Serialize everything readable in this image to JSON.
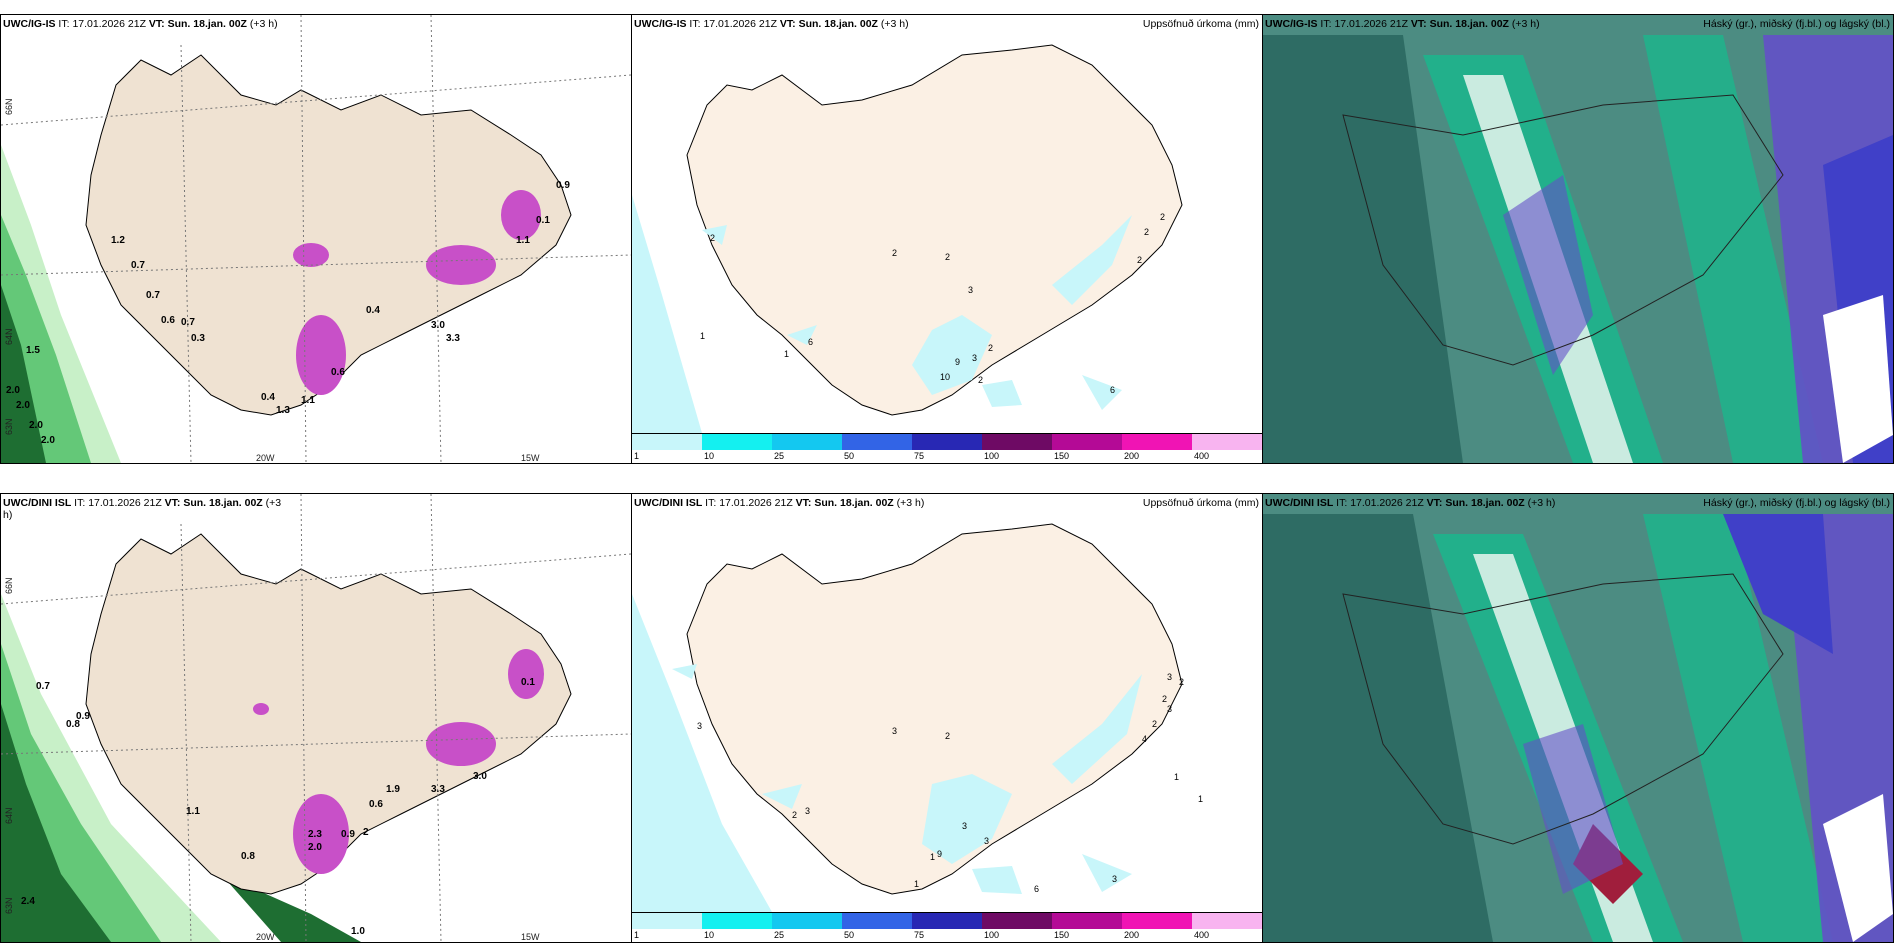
{
  "panels": [
    {
      "model": "UWC/IG-IS",
      "it_label": "IT:",
      "it_value": "17.01.2026 21Z",
      "vt_label": "VT:",
      "vt_value": "Sun. 18.jan. 00Z",
      "step": "(+3 h)",
      "right_title": "",
      "lon_labels": [
        "20W",
        "15W"
      ],
      "lat_labels": [
        "66N",
        "64N",
        "63N"
      ],
      "value_labels": [
        "0.9",
        "0.7",
        "0.7",
        "0.6",
        "0.7",
        "0.3",
        "1.5",
        "2.0",
        "2.0",
        "2.0",
        "2.0",
        "0.6",
        "0.4",
        "0.4",
        "1.3",
        "1.1",
        "1.1",
        "3.0",
        "3.3",
        "1.2",
        "0.1"
      ]
    },
    {
      "model": "UWC/IG-IS",
      "it_label": "IT:",
      "it_value": "17.01.2026 21Z",
      "vt_label": "VT:",
      "vt_value": "Sun. 18.jan. 00Z",
      "step": "(+3 h)",
      "right_title": "Uppsöfnuð úrkoma (mm)",
      "contour_labels": [
        "2",
        "2",
        "2",
        "2",
        "2",
        "2",
        "2",
        "1",
        "1",
        "6",
        "9",
        "3",
        "2",
        "10",
        "6",
        "3"
      ],
      "colorbar": {
        "ticks": [
          "1",
          "10",
          "25",
          "50",
          "75",
          "100",
          "150",
          "200",
          "400"
        ],
        "colors": [
          "#c8f6fa",
          "#14f0f0",
          "#14c8f0",
          "#3264e6",
          "#2828b4",
          "#6e0a64",
          "#b40a96",
          "#f014b4",
          "#f8b4f0"
        ]
      }
    },
    {
      "model": "UWC/IG-IS",
      "it_label": "IT:",
      "it_value": "17.01.2026 21Z",
      "vt_label": "VT:",
      "vt_value": "Sun. 18.jan. 00Z",
      "step": "(+3 h)",
      "right_title": "Háský (gr.), miðský (fj.bl.) og lágský (bl.)"
    },
    {
      "model": "UWC/DINI ISL",
      "it_label": "IT:",
      "it_value": "17.01.2026 21Z",
      "vt_label": "VT:",
      "vt_value": "Sun. 18.jan. 00Z",
      "step": "(+3",
      "step2": "h)",
      "right_title": "",
      "lon_labels": [
        "20W",
        "15W"
      ],
      "lat_labels": [
        "66N",
        "64N",
        "63N"
      ],
      "value_labels": [
        "0.7",
        "0.9",
        "0.8",
        "1.1",
        "0.8",
        "2.4",
        "1.0",
        "2.3",
        "2.0",
        "0.9",
        "2",
        "1.9",
        "3.3",
        "3.0",
        "0.6",
        "0.1"
      ]
    },
    {
      "model": "UWC/DINI ISL",
      "it_label": "IT:",
      "it_value": "17.01.2026 21Z",
      "vt_label": "VT:",
      "vt_value": "Sun. 18.jan. 00Z",
      "step": "(+3 h)",
      "right_title": "Uppsöfnuð úrkoma (mm)",
      "contour_labels": [
        "3",
        "3",
        "2",
        "2",
        "2",
        "2",
        "3",
        "3",
        "4",
        "3",
        "2",
        "3",
        "1",
        "1",
        "1",
        "9",
        "6",
        "3",
        "3",
        "1"
      ],
      "colorbar": {
        "ticks": [
          "1",
          "10",
          "25",
          "50",
          "75",
          "100",
          "150",
          "200",
          "400"
        ],
        "colors": [
          "#c8f6fa",
          "#14f0f0",
          "#14c8f0",
          "#3264e6",
          "#2828b4",
          "#6e0a64",
          "#b40a96",
          "#f014b4",
          "#f8b4f0"
        ]
      }
    },
    {
      "model": "UWC/DINI ISL",
      "it_label": "IT:",
      "it_value": "17.01.2026 21Z",
      "vt_label": "VT:",
      "vt_value": "Sun. 18.jan. 00Z",
      "step": "(+3 h)",
      "right_title": "Háský (gr.), miðský (fj.bl.) og lágský (bl.)"
    }
  ],
  "colors": {
    "land": "#efe2d2",
    "land_precip": "#fbf0e4",
    "sea": "#ffffff",
    "coast": "#000000",
    "green_light": "#c8f0c8",
    "green_mid": "#64c878",
    "green_dark": "#1e6e32",
    "magenta": "#c850c8",
    "cloud_high": "#1eb48c",
    "cloud_mid": "#6450c8",
    "cloud_low": "#3c8ca0",
    "cloud_base": "#4c8c82"
  }
}
